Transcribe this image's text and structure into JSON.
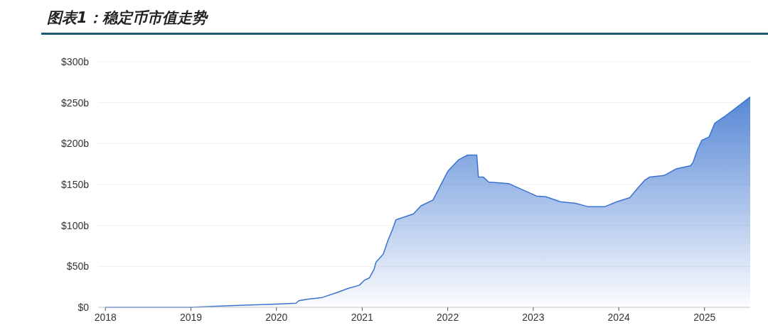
{
  "chart_data": {
    "type": "area",
    "title": "图表1：稳定币市值走势",
    "x": [
      "2018-01-01",
      "2018-07-01",
      "2019-01-01",
      "2019-06-15",
      "2020-01-01",
      "2020-03-25",
      "2020-04-05",
      "2020-05-15",
      "2020-07-15",
      "2020-09-15",
      "2020-11-01",
      "2020-12-20",
      "2021-01-10",
      "2021-02-01",
      "2021-02-20",
      "2021-03-01",
      "2021-04-01",
      "2021-04-20",
      "2021-05-10",
      "2021-05-25",
      "2021-06-05",
      "2021-08-07",
      "2021-09-09",
      "2021-10-30",
      "2022-01-01",
      "2022-02-15",
      "2022-03-27",
      "2022-05-05",
      "2022-05-12",
      "2022-06-02",
      "2022-06-25",
      "2022-09-20",
      "2022-11-13",
      "2023-01-15",
      "2023-02-24",
      "2023-04-27",
      "2023-07-01",
      "2023-08-22",
      "2023-11-03",
      "2023-12-24",
      "2024-02-17",
      "2024-03-17",
      "2024-04-20",
      "2024-05-11",
      "2024-07-12",
      "2024-09-01",
      "2024-11-02",
      "2024-11-13",
      "2024-12-01",
      "2024-12-20",
      "2025-01-20",
      "2025-02-14",
      "2025-04-01",
      "2025-05-12",
      "2025-07-15"
    ],
    "series": [
      {
        "color": "#3a73cf",
        "values": [
          0,
          0,
          0,
          2,
          4,
          5,
          8,
          10,
          12,
          18,
          23,
          27,
          33,
          36,
          46,
          55,
          65,
          81,
          95,
          107,
          108,
          114,
          124,
          131,
          166,
          180,
          186,
          186,
          159,
          159,
          153,
          151,
          144,
          136,
          135,
          129,
          127,
          123,
          123,
          129,
          134,
          144,
          155,
          159,
          161,
          169,
          173,
          177,
          192,
          204,
          208,
          225,
          234,
          243,
          257
        ]
      }
    ],
    "xlim": [
      "2017-12-01",
      "2025-07-15"
    ],
    "xticks": [
      {
        "value": "2018-01-01",
        "label": "2018"
      },
      {
        "value": "2019-01-01",
        "label": "2019"
      },
      {
        "value": "2020-01-01",
        "label": "2020"
      },
      {
        "value": "2021-01-01",
        "label": "2021"
      },
      {
        "value": "2022-01-01",
        "label": "2022"
      },
      {
        "value": "2023-01-01",
        "label": "2023"
      },
      {
        "value": "2024-01-01",
        "label": "2024"
      },
      {
        "value": "2025-01-01",
        "label": "2025"
      }
    ],
    "ylim": [
      0,
      300
    ],
    "yticks": [
      {
        "value": 0,
        "label": "$0"
      },
      {
        "value": 50,
        "label": "$50b"
      },
      {
        "value": 100,
        "label": "$100b"
      },
      {
        "value": 150,
        "label": "$150b"
      },
      {
        "value": 200,
        "label": "$200b"
      },
      {
        "value": 250,
        "label": "$250b"
      },
      {
        "value": 300,
        "label": "$300b"
      }
    ],
    "grid": "y"
  }
}
